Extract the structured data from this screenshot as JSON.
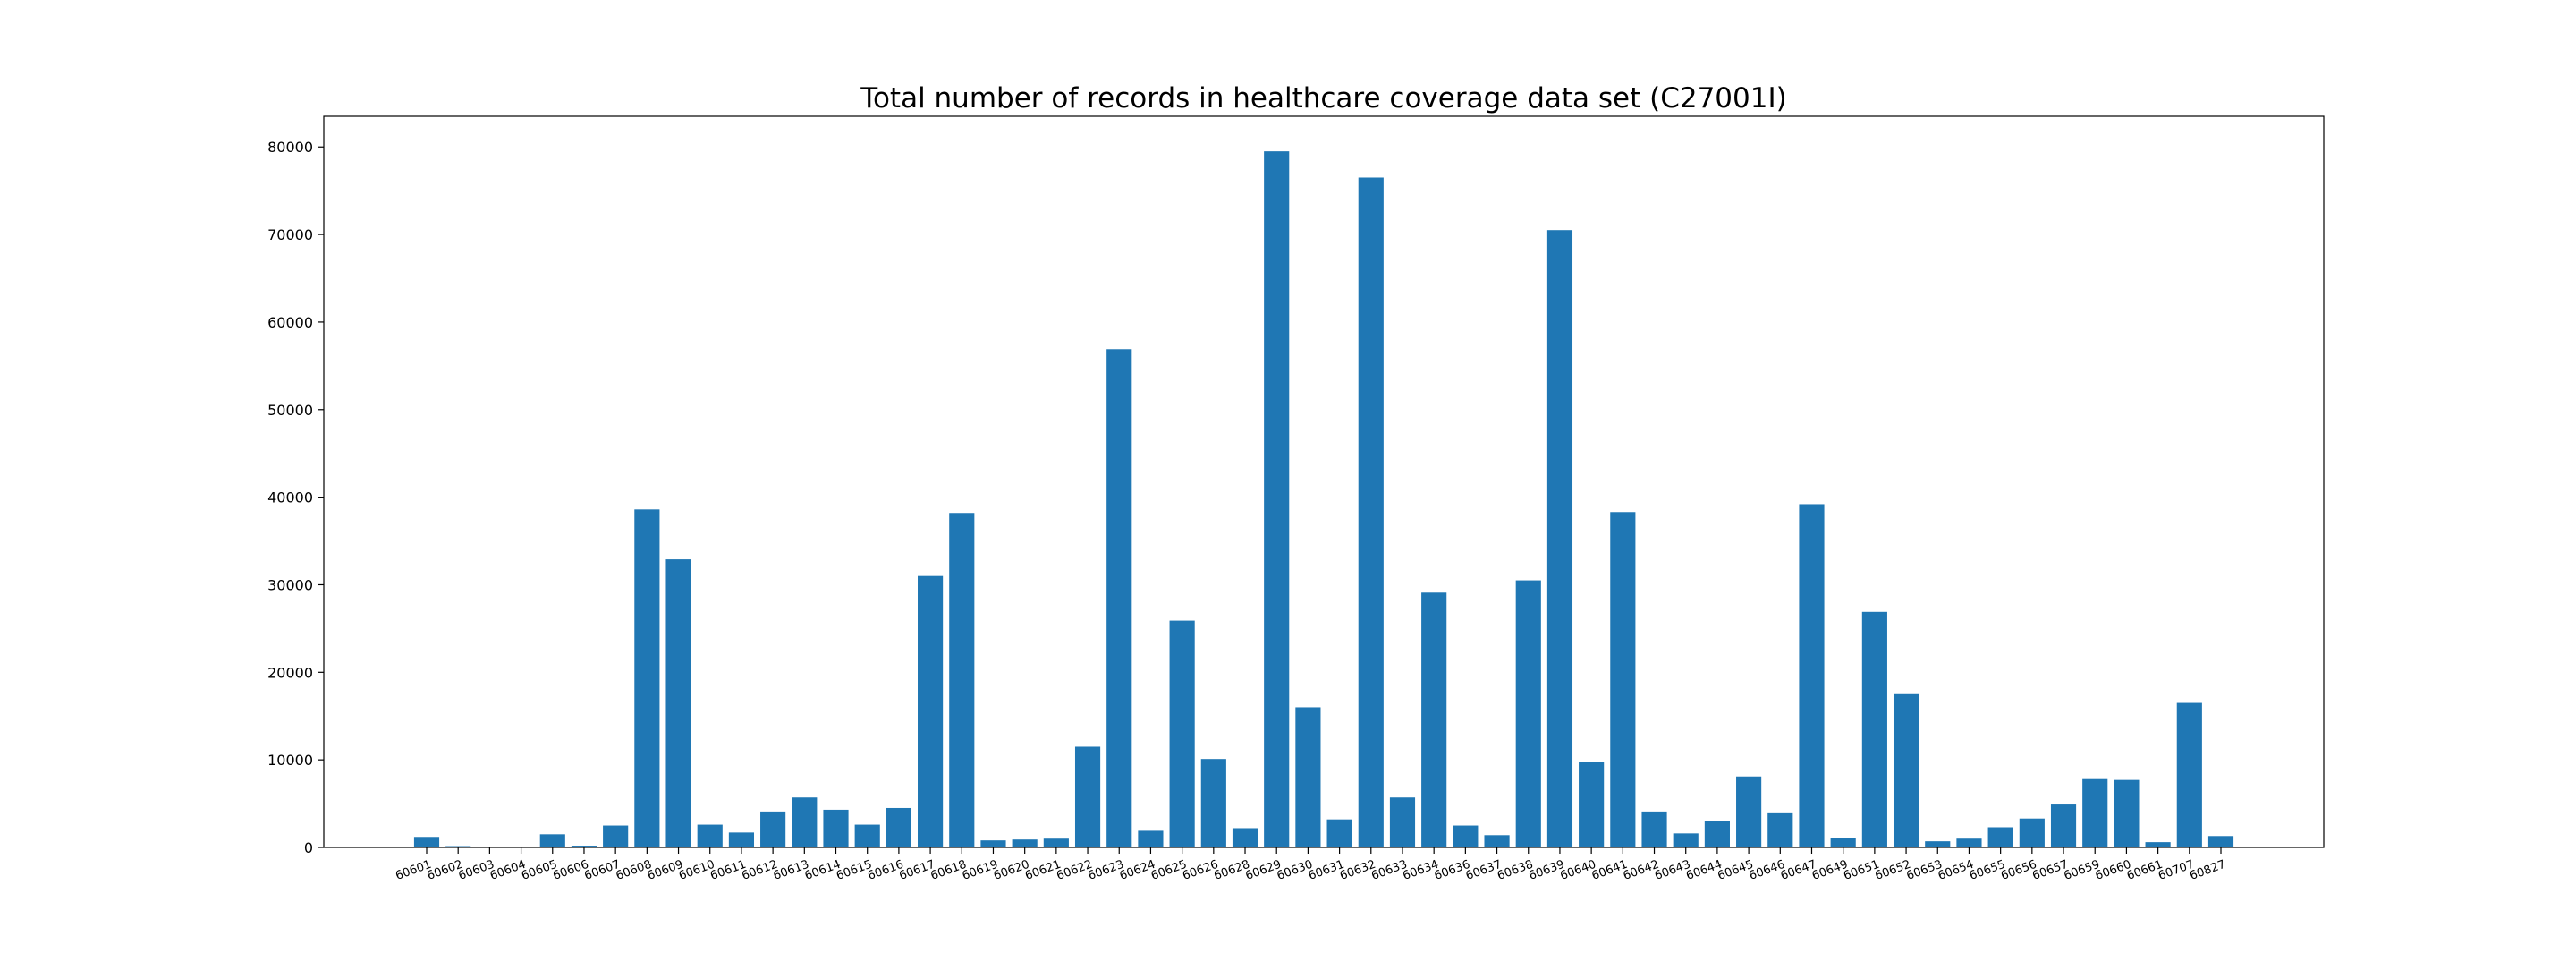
{
  "chart_data": {
    "type": "bar",
    "title": "Total number of records in healthcare coverage data set (C27001I)",
    "xlabel": "",
    "ylabel": "",
    "ylim": [
      0,
      83500
    ],
    "yticks": [
      0,
      10000,
      20000,
      30000,
      40000,
      50000,
      60000,
      70000,
      80000
    ],
    "grid": false,
    "legend": "none",
    "bar_color": "#1f77b4",
    "categories": [
      "60601",
      "60602",
      "60603",
      "60604",
      "60605",
      "60606",
      "60607",
      "60608",
      "60609",
      "60610",
      "60611",
      "60612",
      "60613",
      "60614",
      "60615",
      "60616",
      "60617",
      "60618",
      "60619",
      "60620",
      "60621",
      "60622",
      "60623",
      "60624",
      "60625",
      "60626",
      "60628",
      "60629",
      "60630",
      "60631",
      "60632",
      "60633",
      "60634",
      "60636",
      "60637",
      "60638",
      "60639",
      "60640",
      "60641",
      "60642",
      "60643",
      "60644",
      "60645",
      "60646",
      "60647",
      "60649",
      "60651",
      "60652",
      "60653",
      "60654",
      "60655",
      "60656",
      "60657",
      "60659",
      "60660",
      "60661",
      "60707",
      "60827"
    ],
    "values": [
      1200,
      150,
      100,
      50,
      1500,
      200,
      2500,
      38600,
      32900,
      2600,
      1700,
      4100,
      5700,
      4300,
      2600,
      4500,
      31000,
      38200,
      800,
      900,
      1000,
      11500,
      56900,
      1900,
      25900,
      10100,
      2200,
      79500,
      16000,
      3200,
      76500,
      5700,
      29100,
      2500,
      1400,
      30500,
      70500,
      9800,
      38300,
      4100,
      1600,
      3000,
      8100,
      4000,
      39200,
      1100,
      26900,
      17500,
      700,
      1000,
      2300,
      3300,
      4900,
      7900,
      7700,
      600,
      16500,
      1300
    ]
  }
}
